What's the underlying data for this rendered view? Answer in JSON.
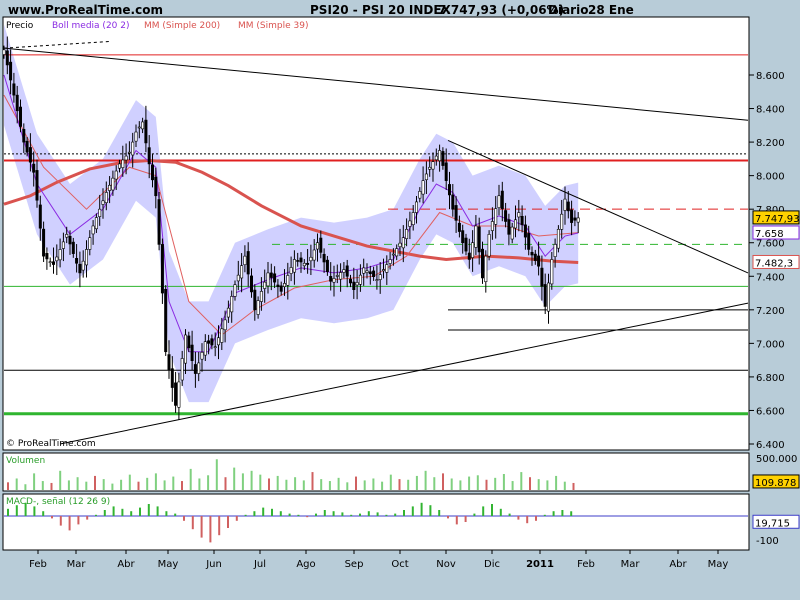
{
  "header": {
    "site": "www.ProRealTime.com",
    "symbol": "PSI20 - PSI 20 INDEX",
    "quote": "7.747,93 (+0,06%)",
    "period": "Diario",
    "date": "28 Ene"
  },
  "colors": {
    "background": "#b8ccd8",
    "panel": "#ffffff",
    "bollinger_band": "#c8c8ff",
    "boll_line": "#8a2be2",
    "ma200": "#d9534f",
    "ma39": "#e06060",
    "macd_line": "#32b432",
    "signal": "#3c3cc8",
    "volume": "#7fd07f",
    "negative": "#d06060",
    "support": "#2fb52f",
    "resistance": "#e02020"
  },
  "chart_data": [
    {
      "type": "candlestick",
      "title": "PSI20 - PSI 20 INDEX",
      "legend": [
        "Precio",
        "Boll media (20 2)",
        "MM (Simple 200)",
        "MM (Simple 39)"
      ],
      "watermark": "© ProRealTime.com",
      "ylim": [
        6400,
        8800
      ],
      "y_ticks": [
        "8.600",
        "8.400",
        "8.200",
        "8.000",
        "7.800",
        "7.600",
        "7.400",
        "7.200",
        "7.000",
        "6.800",
        "6.600",
        "6.400"
      ],
      "y_tick_values": [
        8600,
        8400,
        8200,
        8000,
        7800,
        7600,
        7400,
        7200,
        7000,
        6800,
        6600,
        6400
      ],
      "x_ticks": [
        "Feb",
        "Mar",
        "Abr",
        "May",
        "Jun",
        "Jul",
        "Ago",
        "Sep",
        "Oct",
        "Nov",
        "Dic",
        "2011",
        "Feb",
        "Mar",
        "Abr",
        "May"
      ],
      "last_labels": [
        {
          "text": "7.747,93",
          "value": 7747.93,
          "role": "price"
        },
        {
          "text": "7.658",
          "value": 7658,
          "role": "bollinger"
        },
        {
          "text": "7.482,3",
          "value": 7482.3,
          "role": "ma200"
        }
      ],
      "close_path": [
        [
          0,
          8750
        ],
        [
          3,
          8480
        ],
        [
          6,
          8200
        ],
        [
          9,
          8020
        ],
        [
          12,
          7520
        ],
        [
          15,
          7470
        ],
        [
          19,
          7650
        ],
        [
          23,
          7420
        ],
        [
          27,
          7700
        ],
        [
          31,
          7900
        ],
        [
          35,
          8070
        ],
        [
          38,
          8140
        ],
        [
          40,
          8260
        ],
        [
          42,
          8320
        ],
        [
          44,
          8070
        ],
        [
          46,
          7880
        ],
        [
          48,
          7300
        ],
        [
          49,
          6950
        ],
        [
          52,
          6630
        ],
        [
          55,
          7050
        ],
        [
          58,
          6820
        ],
        [
          61,
          7010
        ],
        [
          64,
          6980
        ],
        [
          67,
          7140
        ],
        [
          70,
          7350
        ],
        [
          73,
          7520
        ],
        [
          76,
          7200
        ],
        [
          80,
          7420
        ],
        [
          84,
          7310
        ],
        [
          88,
          7500
        ],
        [
          92,
          7470
        ],
        [
          95,
          7600
        ],
        [
          99,
          7370
        ],
        [
          103,
          7440
        ],
        [
          106,
          7320
        ],
        [
          109,
          7450
        ],
        [
          113,
          7380
        ],
        [
          117,
          7500
        ],
        [
          121,
          7630
        ],
        [
          124,
          7780
        ],
        [
          127,
          7970
        ],
        [
          129,
          8050
        ],
        [
          132,
          8150
        ],
        [
          134,
          7970
        ],
        [
          136,
          7800
        ],
        [
          139,
          7600
        ],
        [
          141,
          7500
        ],
        [
          143,
          7700
        ],
        [
          145,
          7390
        ],
        [
          147,
          7650
        ],
        [
          150,
          7880
        ],
        [
          153,
          7650
        ],
        [
          156,
          7780
        ],
        [
          159,
          7560
        ],
        [
          162,
          7460
        ],
        [
          164,
          7220
        ],
        [
          166,
          7500
        ],
        [
          168,
          7680
        ],
        [
          170,
          7860
        ],
        [
          172,
          7720
        ],
        [
          174,
          7747.93
        ]
      ],
      "bollinger_mid": [
        [
          0,
          8600
        ],
        [
          10,
          7950
        ],
        [
          20,
          7650
        ],
        [
          30,
          7800
        ],
        [
          40,
          8150
        ],
        [
          46,
          8050
        ],
        [
          50,
          7250
        ],
        [
          56,
          6950
        ],
        [
          62,
          6950
        ],
        [
          70,
          7300
        ],
        [
          80,
          7380
        ],
        [
          90,
          7450
        ],
        [
          100,
          7420
        ],
        [
          110,
          7450
        ],
        [
          118,
          7500
        ],
        [
          126,
          7800
        ],
        [
          131,
          7950
        ],
        [
          136,
          7900
        ],
        [
          142,
          7700
        ],
        [
          150,
          7760
        ],
        [
          158,
          7700
        ],
        [
          164,
          7520
        ],
        [
          170,
          7640
        ],
        [
          174,
          7658
        ]
      ],
      "ma200": [
        [
          0,
          7830
        ],
        [
          8,
          7880
        ],
        [
          16,
          7960
        ],
        [
          26,
          8040
        ],
        [
          36,
          8080
        ],
        [
          44,
          8090
        ],
        [
          52,
          8080
        ],
        [
          60,
          8020
        ],
        [
          68,
          7940
        ],
        [
          78,
          7820
        ],
        [
          90,
          7700
        ],
        [
          100,
          7640
        ],
        [
          110,
          7580
        ],
        [
          118,
          7550
        ],
        [
          126,
          7520
        ],
        [
          134,
          7500
        ],
        [
          146,
          7520
        ],
        [
          156,
          7510
        ],
        [
          166,
          7490
        ],
        [
          174,
          7482.3
        ]
      ],
      "ma39": [
        [
          0,
          8480
        ],
        [
          12,
          8050
        ],
        [
          25,
          7800
        ],
        [
          38,
          8050
        ],
        [
          46,
          8000
        ],
        [
          56,
          7250
        ],
        [
          66,
          7050
        ],
        [
          76,
          7200
        ],
        [
          88,
          7330
        ],
        [
          100,
          7380
        ],
        [
          112,
          7400
        ],
        [
          122,
          7520
        ],
        [
          132,
          7780
        ],
        [
          142,
          7700
        ],
        [
          152,
          7700
        ],
        [
          162,
          7640
        ],
        [
          174,
          7660
        ]
      ],
      "bollinger_width": 300
    },
    {
      "type": "bar",
      "title": "Volumen",
      "ylim": [
        0,
        500000
      ],
      "y_ticks": [
        "500.000"
      ],
      "y_tick_values": [
        500000
      ],
      "last_label": "109.878",
      "last_value": 109878,
      "values": [
        120000,
        180000,
        90000,
        260000,
        140000,
        110000,
        300000,
        150000,
        200000,
        130000,
        220000,
        170000,
        100000,
        160000,
        240000,
        130000,
        190000,
        260000,
        150000,
        210000,
        140000,
        330000,
        180000,
        230000,
        480000,
        200000,
        350000,
        260000,
        300000,
        240000,
        180000,
        220000,
        160000,
        200000,
        150000,
        280000,
        170000,
        140000,
        190000,
        120000,
        210000,
        150000,
        180000,
        130000,
        240000,
        170000,
        160000,
        220000,
        300000,
        200000,
        260000,
        180000,
        150000,
        210000,
        230000,
        160000,
        190000,
        250000,
        140000,
        280000,
        200000,
        170000,
        150000,
        220000,
        130000,
        109878
      ]
    },
    {
      "type": "bar",
      "title": "MACD-, señal (12 26 9)",
      "ylim": [
        -100,
        100
      ],
      "y_ticks": [
        "-100"
      ],
      "y_tick_values": [
        -100
      ],
      "last_label": "19,715",
      "last_value": 19.715,
      "values": [
        30,
        45,
        55,
        40,
        20,
        -10,
        -40,
        -60,
        -35,
        -15,
        5,
        25,
        40,
        30,
        20,
        35,
        50,
        40,
        20,
        10,
        -20,
        -55,
        -90,
        -110,
        -80,
        -50,
        -20,
        5,
        20,
        35,
        30,
        20,
        10,
        5,
        -5,
        10,
        25,
        20,
        15,
        5,
        10,
        20,
        15,
        5,
        10,
        25,
        40,
        55,
        45,
        25,
        -10,
        -35,
        -25,
        10,
        40,
        50,
        30,
        10,
        -15,
        -30,
        -20,
        5,
        20,
        25,
        19.715
      ]
    }
  ]
}
